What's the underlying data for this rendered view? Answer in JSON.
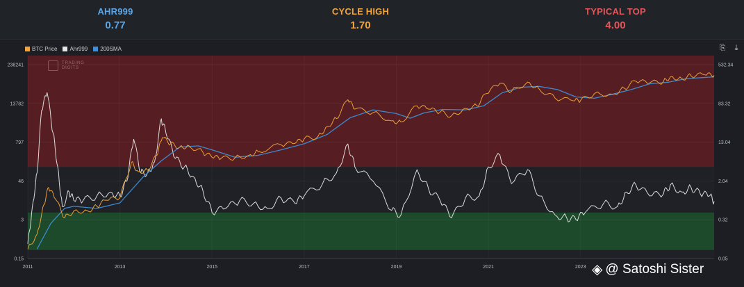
{
  "stats": [
    {
      "label": "AHR999",
      "value": "0.77",
      "color": "#5aa6e8"
    },
    {
      "label": "CYCLE HIGH",
      "value": "1.70",
      "color": "#f2a53a"
    },
    {
      "label": "TYPICAL TOP",
      "value": "4.00",
      "color": "#e4565a"
    }
  ],
  "legend": [
    {
      "name": "BTC Price",
      "color": "#f2a53a"
    },
    {
      "name": "Ahr999",
      "color": "#e6e6e6"
    },
    {
      "name": "200SMA",
      "color": "#3d8fd8"
    }
  ],
  "icons": {
    "copy": "copy-icon",
    "download": "download-icon"
  },
  "watermark": {
    "line1": "TRADING",
    "line2": "DIGITS"
  },
  "brand": {
    "text": "@ Satoshi Sister",
    "icon": "binance-square-icon"
  },
  "chart_data": {
    "type": "line",
    "x_ticks": [
      "2011",
      "2013",
      "2015",
      "2017",
      "2019",
      "2021",
      "2023"
    ],
    "xlim": [
      2011.0,
      2025.9
    ],
    "left_axis": {
      "label": "BTC Price",
      "scale": "log",
      "ticks": [
        "238241",
        "13782",
        "797",
        "46",
        "3",
        "0.15"
      ]
    },
    "right_axis": {
      "label": "Ahr999",
      "scale": "log",
      "ticks": [
        "532.34",
        "83.32",
        "13.04",
        "2.04",
        "0.32",
        "0.05"
      ]
    },
    "bands": [
      {
        "name": "above typical top",
        "from": 4.0,
        "to": 532.34,
        "color": "#5a1f22"
      },
      {
        "name": "buy zone",
        "from": 0.05,
        "to": 0.45,
        "color": "#1e4d2b"
      }
    ],
    "series": [
      {
        "name": "BTC Price",
        "axis": "left",
        "color": "#f2a53a",
        "points": [
          [
            2011.0,
            0.3
          ],
          [
            2011.2,
            0.9
          ],
          [
            2011.35,
            8
          ],
          [
            2011.45,
            28
          ],
          [
            2011.6,
            12
          ],
          [
            2011.8,
            3
          ],
          [
            2012.0,
            5
          ],
          [
            2012.3,
            5
          ],
          [
            2012.5,
            7
          ],
          [
            2012.7,
            11
          ],
          [
            2013.0,
            13
          ],
          [
            2013.25,
            180
          ],
          [
            2013.4,
            90
          ],
          [
            2013.6,
            100
          ],
          [
            2013.8,
            300
          ],
          [
            2013.92,
            1100
          ],
          [
            2014.1,
            700
          ],
          [
            2014.3,
            550
          ],
          [
            2014.5,
            600
          ],
          [
            2014.8,
            380
          ],
          [
            2015.0,
            260
          ],
          [
            2015.2,
            240
          ],
          [
            2015.5,
            250
          ],
          [
            2015.8,
            300
          ],
          [
            2016.0,
            400
          ],
          [
            2016.5,
            650
          ],
          [
            2016.8,
            720
          ],
          [
            2017.0,
            1000
          ],
          [
            2017.3,
            1200
          ],
          [
            2017.5,
            2500
          ],
          [
            2017.7,
            4500
          ],
          [
            2017.95,
            18000
          ],
          [
            2018.1,
            9000
          ],
          [
            2018.5,
            7000
          ],
          [
            2018.9,
            3800
          ],
          [
            2019.1,
            3500
          ],
          [
            2019.45,
            11500
          ],
          [
            2019.7,
            9000
          ],
          [
            2019.95,
            7200
          ],
          [
            2020.2,
            5500
          ],
          [
            2020.5,
            9500
          ],
          [
            2020.75,
            11500
          ],
          [
            2020.95,
            28000
          ],
          [
            2021.25,
            60000
          ],
          [
            2021.5,
            33000
          ],
          [
            2021.85,
            66000
          ],
          [
            2022.1,
            40000
          ],
          [
            2022.45,
            20000
          ],
          [
            2022.85,
            16500
          ],
          [
            2023.0,
            17000
          ],
          [
            2023.3,
            28000
          ],
          [
            2023.7,
            27000
          ],
          [
            2023.95,
            42000
          ],
          [
            2024.2,
            70000
          ],
          [
            2024.5,
            62000
          ],
          [
            2024.8,
            68000
          ],
          [
            2024.95,
            97000
          ],
          [
            2025.2,
            85000
          ],
          [
            2025.4,
            105000
          ],
          [
            2025.7,
            112000
          ],
          [
            2025.9,
            108000
          ]
        ]
      },
      {
        "name": "200SMA",
        "axis": "left",
        "color": "#3d8fd8",
        "points": [
          [
            2011.2,
            0.3
          ],
          [
            2011.5,
            2
          ],
          [
            2011.8,
            6
          ],
          [
            2012.0,
            7
          ],
          [
            2012.5,
            6
          ],
          [
            2013.0,
            9
          ],
          [
            2013.5,
            60
          ],
          [
            2013.9,
            200
          ],
          [
            2014.3,
            550
          ],
          [
            2014.7,
            600
          ],
          [
            2015.0,
            450
          ],
          [
            2015.5,
            260
          ],
          [
            2016.0,
            300
          ],
          [
            2016.5,
            450
          ],
          [
            2017.0,
            700
          ],
          [
            2017.5,
            1400
          ],
          [
            2018.0,
            4800
          ],
          [
            2018.5,
            8500
          ],
          [
            2019.0,
            6500
          ],
          [
            2019.3,
            4600
          ],
          [
            2019.6,
            6800
          ],
          [
            2020.0,
            8800
          ],
          [
            2020.5,
            8500
          ],
          [
            2020.9,
            11500
          ],
          [
            2021.3,
            30000
          ],
          [
            2021.7,
            45000
          ],
          [
            2022.1,
            48000
          ],
          [
            2022.5,
            38000
          ],
          [
            2022.9,
            22000
          ],
          [
            2023.3,
            20000
          ],
          [
            2023.7,
            27000
          ],
          [
            2024.1,
            38000
          ],
          [
            2024.5,
            58000
          ],
          [
            2024.9,
            65000
          ],
          [
            2025.3,
            85000
          ],
          [
            2025.9,
            97000
          ]
        ]
      },
      {
        "name": "Ahr999",
        "axis": "right",
        "color": "#e6e6e6",
        "points": [
          [
            2011.0,
            0.1
          ],
          [
            2011.1,
            0.6
          ],
          [
            2011.2,
            3
          ],
          [
            2011.3,
            60
          ],
          [
            2011.42,
            140
          ],
          [
            2011.55,
            20
          ],
          [
            2011.65,
            4
          ],
          [
            2011.75,
            0.6
          ],
          [
            2011.9,
            1.2
          ],
          [
            2012.0,
            0.8
          ],
          [
            2012.2,
            0.8
          ],
          [
            2012.5,
            1.0
          ],
          [
            2012.8,
            1.2
          ],
          [
            2013.0,
            1.0
          ],
          [
            2013.15,
            2
          ],
          [
            2013.3,
            15
          ],
          [
            2013.45,
            3
          ],
          [
            2013.6,
            3
          ],
          [
            2013.75,
            5
          ],
          [
            2013.9,
            40
          ],
          [
            2014.0,
            20
          ],
          [
            2014.2,
            6
          ],
          [
            2014.4,
            4
          ],
          [
            2014.6,
            2.5
          ],
          [
            2014.8,
            1.3
          ],
          [
            2015.0,
            0.45
          ],
          [
            2015.3,
            0.55
          ],
          [
            2015.6,
            0.8
          ],
          [
            2015.9,
            0.7
          ],
          [
            2016.2,
            0.55
          ],
          [
            2016.5,
            0.9
          ],
          [
            2016.8,
            0.7
          ],
          [
            2017.0,
            1.0
          ],
          [
            2017.4,
            1.8
          ],
          [
            2017.7,
            3
          ],
          [
            2017.95,
            12
          ],
          [
            2018.1,
            4
          ],
          [
            2018.5,
            2
          ],
          [
            2018.9,
            0.5
          ],
          [
            2019.1,
            0.4
          ],
          [
            2019.45,
            3.5
          ],
          [
            2019.7,
            1.4
          ],
          [
            2019.95,
            0.8
          ],
          [
            2020.2,
            0.35
          ],
          [
            2020.5,
            0.9
          ],
          [
            2020.8,
            1.0
          ],
          [
            2021.0,
            4
          ],
          [
            2021.25,
            7
          ],
          [
            2021.5,
            1.8
          ],
          [
            2021.85,
            3.5
          ],
          [
            2022.1,
            1.0
          ],
          [
            2022.45,
            0.4
          ],
          [
            2022.7,
            0.35
          ],
          [
            2022.9,
            0.32
          ],
          [
            2023.1,
            0.45
          ],
          [
            2023.5,
            0.7
          ],
          [
            2023.8,
            0.6
          ],
          [
            2024.0,
            1.2
          ],
          [
            2024.2,
            1.7
          ],
          [
            2024.5,
            1.0
          ],
          [
            2024.8,
            1.1
          ],
          [
            2024.95,
            1.7
          ],
          [
            2025.2,
            1.2
          ],
          [
            2025.4,
            1.5
          ],
          [
            2025.6,
            1.1
          ],
          [
            2025.8,
            1.0
          ],
          [
            2025.9,
            0.77
          ]
        ]
      }
    ]
  }
}
